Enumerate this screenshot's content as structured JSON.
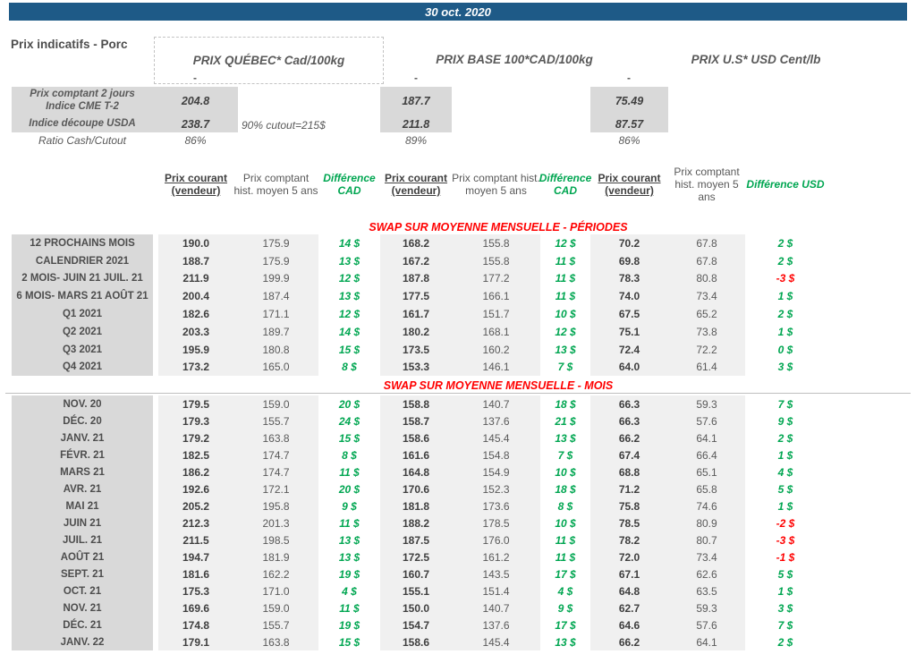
{
  "colors": {
    "banner_navy": "#1e5a87",
    "positive_green": "#00a651",
    "negative_red": "#ff0000",
    "label_gray": "#d9d9d9",
    "value_gray": "#f0f0f0"
  },
  "title_bar": {
    "date": "30 oct. 2020"
  },
  "page_label": "Prix indicatifs - Porc",
  "groups": {
    "quebec_title": "PRIX QUÉBEC* Cad/100kg",
    "base_title": "PRIX BASE 100*CAD/100kg",
    "us_title": "PRIX U.S* USD Cent/lb"
  },
  "summary": {
    "dash": "-",
    "row1_label_line1": "Prix comptant 2 jours",
    "row1_label_line2": "Indice CME T-2",
    "row2_label": "Indice découpe USDA",
    "ratio_label": "Ratio Cash/Cutout",
    "note": "90% cutout=215$",
    "quebec": {
      "spot": "204.8",
      "cutout": "238.7",
      "ratio": "86%"
    },
    "base": {
      "spot": "187.7",
      "cutout": "211.8",
      "ratio": "89%"
    },
    "us": {
      "spot": "75.49",
      "cutout": "87.57",
      "ratio": "86%"
    }
  },
  "column_headers": {
    "current": "Prix courant (vendeur)",
    "hist": "Prix comptant hist. moyen 5 ans",
    "diff_cad": "Différence CAD",
    "diff_usd": "Différence USD"
  },
  "tables": {
    "periods": {
      "header": "SWAP SUR MOYENNE MENSUELLE - PÉRIODES",
      "rows": [
        [
          "12 PROCHAINS MOIS",
          "190.0",
          "175.9",
          "14 $",
          "168.2",
          "155.8",
          "12 $",
          "70.2",
          "67.8",
          "2 $"
        ],
        [
          "CALENDRIER 2021",
          "188.7",
          "175.9",
          "13 $",
          "167.2",
          "155.8",
          "11 $",
          "69.8",
          "67.8",
          "2 $"
        ],
        [
          "2 MOIS- JUIN 21 JUIL. 21",
          "211.9",
          "199.9",
          "12 $",
          "187.8",
          "177.2",
          "11 $",
          "78.3",
          "80.8",
          "-3 $"
        ],
        [
          "6 MOIS- MARS 21 AOÛT 21",
          "200.4",
          "187.4",
          "13 $",
          "177.5",
          "166.1",
          "11 $",
          "74.0",
          "73.4",
          "1 $"
        ],
        [
          "Q1 2021",
          "182.6",
          "171.1",
          "12 $",
          "161.7",
          "151.7",
          "10 $",
          "67.5",
          "65.2",
          "2 $"
        ],
        [
          "Q2 2021",
          "203.3",
          "189.7",
          "14 $",
          "180.2",
          "168.1",
          "12 $",
          "75.1",
          "73.8",
          "1 $"
        ],
        [
          "Q3 2021",
          "195.9",
          "180.8",
          "15 $",
          "173.5",
          "160.2",
          "13 $",
          "72.4",
          "72.2",
          "0 $"
        ],
        [
          "Q4 2021",
          "173.2",
          "165.0",
          "8 $",
          "153.3",
          "146.1",
          "7 $",
          "64.0",
          "61.4",
          "3 $"
        ]
      ]
    },
    "months": {
      "header": "SWAP SUR MOYENNE MENSUELLE - MOIS",
      "rows": [
        [
          "NOV. 20",
          "179.5",
          "159.0",
          "20 $",
          "158.8",
          "140.7",
          "18 $",
          "66.3",
          "59.3",
          "7 $"
        ],
        [
          "DÉC. 20",
          "179.3",
          "155.7",
          "24 $",
          "158.7",
          "137.6",
          "21 $",
          "66.3",
          "57.6",
          "9 $"
        ],
        [
          "JANV. 21",
          "179.2",
          "163.8",
          "15 $",
          "158.6",
          "145.4",
          "13 $",
          "66.2",
          "64.1",
          "2 $"
        ],
        [
          "FÉVR. 21",
          "182.5",
          "174.7",
          "8 $",
          "161.6",
          "154.8",
          "7 $",
          "67.4",
          "66.4",
          "1 $"
        ],
        [
          "MARS 21",
          "186.2",
          "174.7",
          "11 $",
          "164.8",
          "154.9",
          "10 $",
          "68.8",
          "65.1",
          "4 $"
        ],
        [
          "AVR. 21",
          "192.6",
          "172.1",
          "20 $",
          "170.6",
          "152.3",
          "18 $",
          "71.2",
          "65.8",
          "5 $"
        ],
        [
          "MAI 21",
          "205.2",
          "195.8",
          "9 $",
          "181.8",
          "173.6",
          "8 $",
          "75.8",
          "74.6",
          "1 $"
        ],
        [
          "JUIN 21",
          "212.3",
          "201.3",
          "11 $",
          "188.2",
          "178.5",
          "10 $",
          "78.5",
          "80.9",
          "-2 $"
        ],
        [
          "JUIL. 21",
          "211.5",
          "198.5",
          "13 $",
          "187.5",
          "176.0",
          "11 $",
          "78.2",
          "80.7",
          "-3 $"
        ],
        [
          "AOÛT 21",
          "194.7",
          "181.9",
          "13 $",
          "172.5",
          "161.2",
          "11 $",
          "72.0",
          "73.4",
          "-1 $"
        ],
        [
          "SEPT. 21",
          "181.6",
          "162.2",
          "19 $",
          "160.7",
          "143.5",
          "17 $",
          "67.1",
          "62.6",
          "5 $"
        ],
        [
          "OCT. 21",
          "175.3",
          "171.0",
          "4 $",
          "155.1",
          "151.4",
          "4 $",
          "64.8",
          "63.5",
          "1 $"
        ],
        [
          "NOV. 21",
          "169.6",
          "159.0",
          "11 $",
          "150.0",
          "140.7",
          "9 $",
          "62.7",
          "59.3",
          "3 $"
        ],
        [
          "DÉC. 21",
          "174.8",
          "155.7",
          "19 $",
          "154.7",
          "137.6",
          "17 $",
          "64.6",
          "57.6",
          "7 $"
        ],
        [
          "JANV. 22",
          "179.1",
          "163.8",
          "15 $",
          "158.6",
          "145.4",
          "13 $",
          "66.2",
          "64.1",
          "2 $"
        ]
      ]
    }
  }
}
